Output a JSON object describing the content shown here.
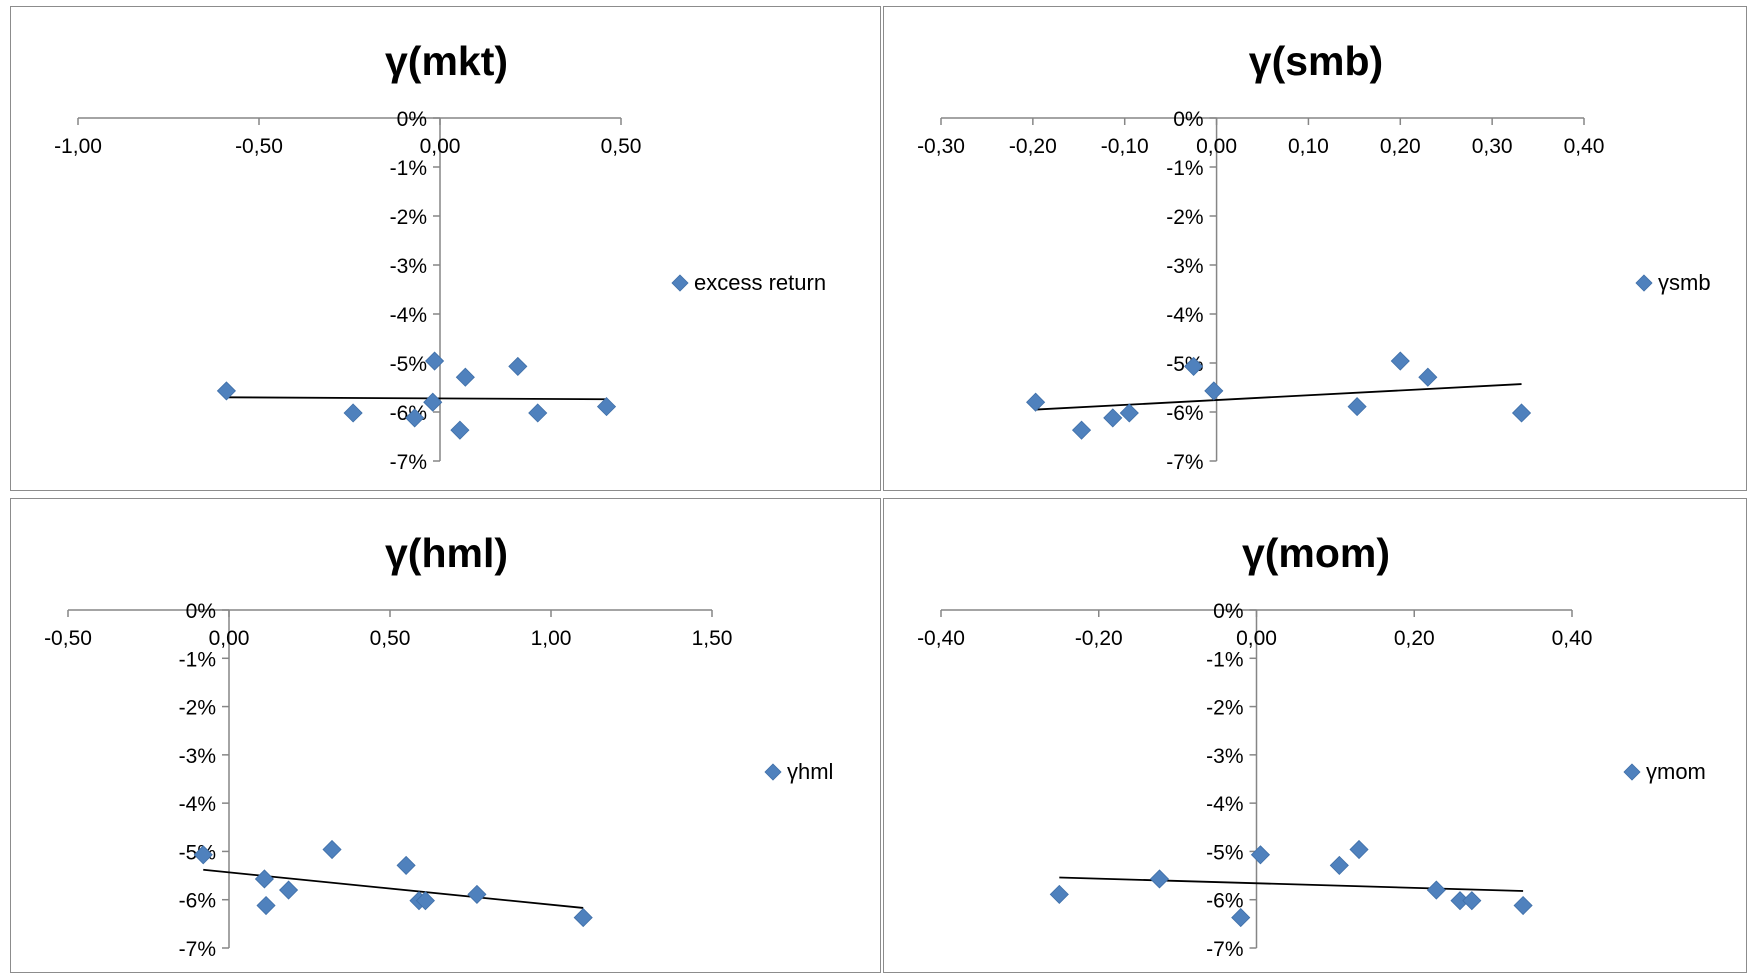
{
  "chart_data": [
    {
      "type": "scatter",
      "title": "γ(mkt)",
      "xlabel": "",
      "ylabel": "",
      "xlim": [
        -1.0,
        0.5
      ],
      "ylim": [
        -0.07,
        0.0
      ],
      "x_ticks": [
        -1.0,
        -0.5,
        0.0,
        0.5
      ],
      "x_tick_labels": [
        "-1,00",
        "-0,50",
        "0,00",
        "0,50"
      ],
      "y_ticks": [
        0.0,
        -0.01,
        -0.02,
        -0.03,
        -0.04,
        -0.05,
        -0.06,
        -0.07
      ],
      "y_tick_labels": [
        "0%",
        "-1%",
        "-2%",
        "-3%",
        "-4%",
        "-5%",
        "-6%",
        "-7%"
      ],
      "legend_position": "right",
      "grid": false,
      "series": [
        {
          "name": "excess return",
          "color": "#4f81bd",
          "marker": "diamond",
          "points": [
            {
              "x": -0.59,
              "y": -0.0557
            },
            {
              "x": -0.24,
              "y": -0.0602
            },
            {
              "x": -0.07,
              "y": -0.0612
            },
            {
              "x": -0.02,
              "y": -0.058
            },
            {
              "x": -0.015,
              "y": -0.0496
            },
            {
              "x": 0.055,
              "y": -0.0637
            },
            {
              "x": 0.07,
              "y": -0.0529
            },
            {
              "x": 0.215,
              "y": -0.0507
            },
            {
              "x": 0.27,
              "y": -0.0602
            },
            {
              "x": 0.46,
              "y": -0.0589
            }
          ]
        }
      ],
      "trendline": {
        "x": [
          -0.59,
          0.46
        ],
        "y": [
          -0.057,
          -0.0574
        ],
        "color": "#000000"
      }
    },
    {
      "type": "scatter",
      "title": "γ(smb)",
      "xlabel": "",
      "ylabel": "",
      "xlim": [
        -0.3,
        0.4
      ],
      "ylim": [
        -0.07,
        0.0
      ],
      "x_ticks": [
        -0.3,
        -0.2,
        -0.1,
        0.0,
        0.1,
        0.2,
        0.3,
        0.4
      ],
      "x_tick_labels": [
        "-0,30",
        "-0,20",
        "-0,10",
        "0,00",
        "0,10",
        "0,20",
        "0,30",
        "0,40"
      ],
      "y_ticks": [
        0.0,
        -0.01,
        -0.02,
        -0.03,
        -0.04,
        -0.05,
        -0.06,
        -0.07
      ],
      "y_tick_labels": [
        "0%",
        "-1%",
        "-2%",
        "-3%",
        "-4%",
        "-5%",
        "-6%",
        "-7%"
      ],
      "legend_position": "right",
      "grid": false,
      "series": [
        {
          "name": "γsmb",
          "color": "#4f81bd",
          "marker": "diamond",
          "points": [
            {
              "x": -0.197,
              "y": -0.058
            },
            {
              "x": -0.147,
              "y": -0.0637
            },
            {
              "x": -0.113,
              "y": -0.0612
            },
            {
              "x": -0.095,
              "y": -0.0602
            },
            {
              "x": -0.025,
              "y": -0.0507
            },
            {
              "x": -0.003,
              "y": -0.0557
            },
            {
              "x": 0.153,
              "y": -0.0589
            },
            {
              "x": 0.2,
              "y": -0.0496
            },
            {
              "x": 0.23,
              "y": -0.0529
            },
            {
              "x": 0.332,
              "y": -0.0602
            }
          ]
        }
      ],
      "trendline": {
        "x": [
          -0.197,
          0.332
        ],
        "y": [
          -0.0595,
          -0.0543
        ],
        "color": "#000000"
      }
    },
    {
      "type": "scatter",
      "title": "γ(hml)",
      "xlabel": "",
      "ylabel": "",
      "xlim": [
        -0.5,
        1.5
      ],
      "ylim": [
        -0.07,
        0.0
      ],
      "x_ticks": [
        -0.5,
        0.0,
        0.5,
        1.0,
        1.5
      ],
      "x_tick_labels": [
        "-0,50",
        "0,00",
        "0,50",
        "1,00",
        "1,50"
      ],
      "y_ticks": [
        0.0,
        -0.01,
        -0.02,
        -0.03,
        -0.04,
        -0.05,
        -0.06,
        -0.07
      ],
      "y_tick_labels": [
        "0%",
        "-1%",
        "-2%",
        "-3%",
        "-4%",
        "-5%",
        "-6%",
        "-7%"
      ],
      "legend_position": "right",
      "grid": false,
      "series": [
        {
          "name": "γhml",
          "color": "#4f81bd",
          "marker": "diamond",
          "points": [
            {
              "x": -0.08,
              "y": -0.0507
            },
            {
              "x": 0.11,
              "y": -0.0557
            },
            {
              "x": 0.115,
              "y": -0.0612
            },
            {
              "x": 0.185,
              "y": -0.058
            },
            {
              "x": 0.32,
              "y": -0.0496
            },
            {
              "x": 0.55,
              "y": -0.0529
            },
            {
              "x": 0.59,
              "y": -0.0602
            },
            {
              "x": 0.61,
              "y": -0.0602
            },
            {
              "x": 0.77,
              "y": -0.0589
            },
            {
              "x": 1.1,
              "y": -0.0637
            }
          ]
        }
      ],
      "trendline": {
        "x": [
          -0.08,
          1.1
        ],
        "y": [
          -0.0538,
          -0.0617
        ],
        "color": "#000000"
      }
    },
    {
      "type": "scatter",
      "title": "γ(mom)",
      "xlabel": "",
      "ylabel": "",
      "xlim": [
        -0.4,
        0.4
      ],
      "ylim": [
        -0.07,
        0.0
      ],
      "x_ticks": [
        -0.4,
        -0.2,
        0.0,
        0.2,
        0.4
      ],
      "x_tick_labels": [
        "-0,40",
        "-0,20",
        "0,00",
        "0,20",
        "0,40"
      ],
      "y_ticks": [
        0.0,
        -0.01,
        -0.02,
        -0.03,
        -0.04,
        -0.05,
        -0.06,
        -0.07
      ],
      "y_tick_labels": [
        "0%",
        "-1%",
        "-2%",
        "-3%",
        "-4%",
        "-5%",
        "-6%",
        "-7%"
      ],
      "legend_position": "right",
      "grid": false,
      "series": [
        {
          "name": "γmom",
          "color": "#4f81bd",
          "marker": "diamond",
          "points": [
            {
              "x": -0.25,
              "y": -0.0589
            },
            {
              "x": -0.123,
              "y": -0.0557
            },
            {
              "x": -0.02,
              "y": -0.0637
            },
            {
              "x": 0.005,
              "y": -0.0507
            },
            {
              "x": 0.105,
              "y": -0.0529
            },
            {
              "x": 0.13,
              "y": -0.0496
            },
            {
              "x": 0.228,
              "y": -0.058
            },
            {
              "x": 0.258,
              "y": -0.0602
            },
            {
              "x": 0.273,
              "y": -0.0602
            },
            {
              "x": 0.338,
              "y": -0.0612
            }
          ]
        }
      ],
      "trendline": {
        "x": [
          -0.25,
          0.338
        ],
        "y": [
          -0.0554,
          -0.0582
        ],
        "color": "#000000"
      }
    }
  ]
}
